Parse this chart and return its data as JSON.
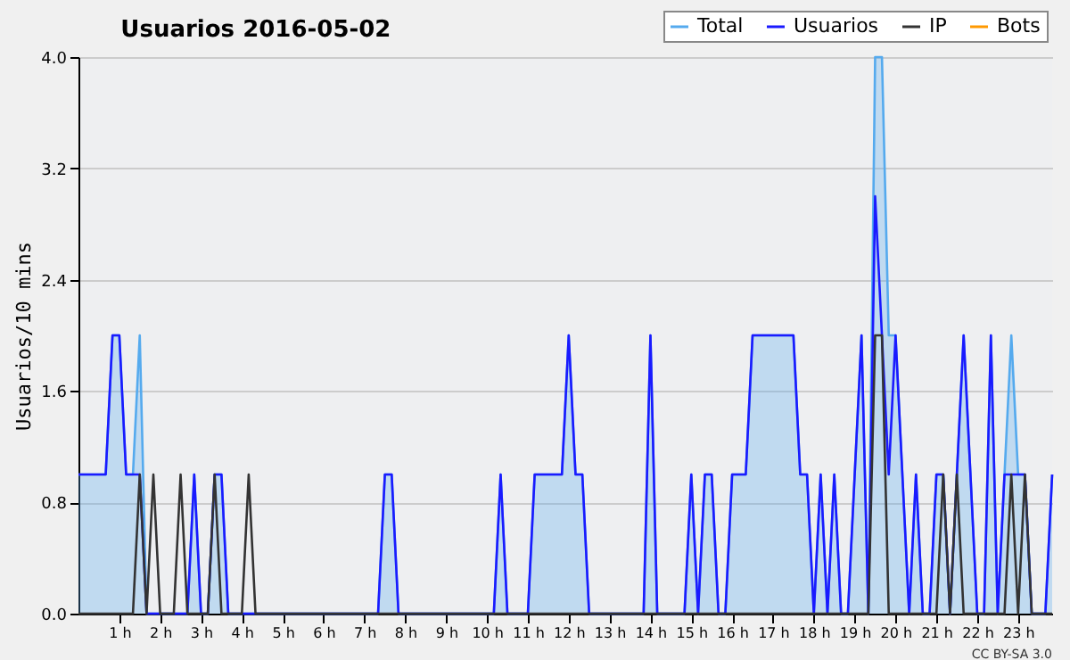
{
  "chart_data": {
    "type": "line",
    "title": "Usuarios  2016-05-02",
    "ylabel": "Usuarios/10 mins",
    "annotations": [
      "CC BY-SA 3.0"
    ],
    "x": [
      0,
      0.1667,
      0.3333,
      0.5,
      0.6667,
      0.8333,
      1,
      1.1667,
      1.3333,
      1.5,
      1.6667,
      1.8333,
      2,
      2.1667,
      2.3333,
      2.5,
      2.6667,
      2.8333,
      3,
      3.1667,
      3.3333,
      3.5,
      3.6667,
      3.8333,
      4,
      4.1667,
      4.3333,
      4.5,
      4.6667,
      4.8333,
      5,
      5.1667,
      5.3333,
      5.5,
      5.6667,
      5.8333,
      6,
      6.1667,
      6.3333,
      6.5,
      6.6667,
      6.8333,
      7,
      7.1667,
      7.3333,
      7.5,
      7.6667,
      7.8333,
      8,
      8.1667,
      8.3333,
      8.5,
      8.6667,
      8.8333,
      9,
      9.1667,
      9.3333,
      9.5,
      9.6667,
      9.8333,
      10,
      10.1667,
      10.3333,
      10.5,
      10.6667,
      10.8333,
      11,
      11.1667,
      11.3333,
      11.5,
      11.6667,
      11.8333,
      12,
      12.1667,
      12.3333,
      12.5,
      12.6667,
      12.8333,
      13,
      13.1667,
      13.3333,
      13.5,
      13.6667,
      13.8333,
      14,
      14.1667,
      14.3333,
      14.5,
      14.6667,
      14.8333,
      15,
      15.1667,
      15.3333,
      15.5,
      15.6667,
      15.8333,
      16,
      16.1667,
      16.3333,
      16.5,
      16.6667,
      16.8333,
      17,
      17.1667,
      17.3333,
      17.5,
      17.6667,
      17.8333,
      18,
      18.1667,
      18.3333,
      18.5,
      18.6667,
      18.8333,
      19,
      19.1667,
      19.3333,
      19.5,
      19.6667,
      19.8333,
      20,
      20.1667,
      20.3333,
      20.5,
      20.6667,
      20.8333,
      21,
      21.1667,
      21.3333,
      21.5,
      21.6667,
      21.8333,
      22,
      22.1667,
      22.3333,
      22.5,
      22.6667,
      22.8333,
      23,
      23.1667,
      23.3333,
      23.5,
      23.6667,
      23.8333
    ],
    "xlim": [
      0,
      23.8333
    ],
    "xticks": [
      {
        "value": 1,
        "label": "1 h"
      },
      {
        "value": 2,
        "label": "2 h"
      },
      {
        "value": 3,
        "label": "3 h"
      },
      {
        "value": 4,
        "label": "4 h"
      },
      {
        "value": 5,
        "label": "5 h"
      },
      {
        "value": 6,
        "label": "6 h"
      },
      {
        "value": 7,
        "label": "7 h"
      },
      {
        "value": 8,
        "label": "8 h"
      },
      {
        "value": 9,
        "label": "9 h"
      },
      {
        "value": 10,
        "label": "10 h"
      },
      {
        "value": 11,
        "label": "11 h"
      },
      {
        "value": 12,
        "label": "12 h"
      },
      {
        "value": 13,
        "label": "13 h"
      },
      {
        "value": 14,
        "label": "14 h"
      },
      {
        "value": 15,
        "label": "15 h"
      },
      {
        "value": 16,
        "label": "16 h"
      },
      {
        "value": 17,
        "label": "17 h"
      },
      {
        "value": 18,
        "label": "18 h"
      },
      {
        "value": 19,
        "label": "19 h"
      },
      {
        "value": 20,
        "label": "20 h"
      },
      {
        "value": 21,
        "label": "21 h"
      },
      {
        "value": 22,
        "label": "22 h"
      },
      {
        "value": 23,
        "label": "23 h"
      }
    ],
    "ylim": [
      0,
      4
    ],
    "yticks": [
      {
        "value": 0,
        "label": "0.0"
      },
      {
        "value": 0.8,
        "label": "0.8"
      },
      {
        "value": 1.6,
        "label": "1.6"
      },
      {
        "value": 2.4,
        "label": "2.4"
      },
      {
        "value": 3.2,
        "label": "3.2"
      },
      {
        "value": 4,
        "label": "4.0"
      }
    ],
    "grid": "y",
    "legend": "top right",
    "series": [
      {
        "name": "Total",
        "type": "area",
        "color": "#55aaee",
        "values": [
          1,
          1,
          1,
          1,
          1,
          2,
          2,
          1,
          1,
          2,
          0,
          0,
          0,
          0,
          0,
          0,
          0,
          1,
          0,
          0,
          1,
          1,
          0,
          0,
          0,
          0,
          0,
          0,
          0,
          0,
          0,
          0,
          0,
          0,
          0,
          0,
          0,
          0,
          0,
          0,
          0,
          0,
          0,
          0,
          0,
          1,
          1,
          0,
          0,
          0,
          0,
          0,
          0,
          0,
          0,
          0,
          0,
          0,
          0,
          0,
          0,
          0,
          1,
          0,
          0,
          0,
          0,
          1,
          1,
          1,
          1,
          1,
          2,
          1,
          1,
          0,
          0,
          0,
          0,
          0,
          0,
          0,
          0,
          0,
          2,
          0,
          0,
          0,
          0,
          0,
          1,
          0,
          1,
          1,
          0,
          0,
          1,
          1,
          1,
          2,
          2,
          2,
          2,
          2,
          2,
          2,
          1,
          1,
          0,
          1,
          0,
          1,
          0,
          0,
          1,
          2,
          0,
          4,
          4,
          2,
          2,
          1,
          0,
          1,
          0,
          0,
          1,
          1,
          0,
          1,
          2,
          1,
          0,
          0,
          2,
          0,
          1,
          2,
          1,
          1,
          0,
          0,
          0,
          1
        ]
      },
      {
        "name": "Usuarios",
        "color": "#1a1aff",
        "values": [
          1,
          1,
          1,
          1,
          1,
          2,
          2,
          1,
          1,
          1,
          0,
          0,
          0,
          0,
          0,
          0,
          0,
          1,
          0,
          0,
          1,
          1,
          0,
          0,
          0,
          0,
          0,
          0,
          0,
          0,
          0,
          0,
          0,
          0,
          0,
          0,
          0,
          0,
          0,
          0,
          0,
          0,
          0,
          0,
          0,
          1,
          1,
          0,
          0,
          0,
          0,
          0,
          0,
          0,
          0,
          0,
          0,
          0,
          0,
          0,
          0,
          0,
          1,
          0,
          0,
          0,
          0,
          1,
          1,
          1,
          1,
          1,
          2,
          1,
          1,
          0,
          0,
          0,
          0,
          0,
          0,
          0,
          0,
          0,
          2,
          0,
          0,
          0,
          0,
          0,
          1,
          0,
          1,
          1,
          0,
          0,
          1,
          1,
          1,
          2,
          2,
          2,
          2,
          2,
          2,
          2,
          1,
          1,
          0,
          1,
          0,
          1,
          0,
          0,
          1,
          2,
          0,
          3,
          2,
          1,
          2,
          1,
          0,
          1,
          0,
          0,
          1,
          1,
          0,
          1,
          2,
          1,
          0,
          0,
          2,
          0,
          1,
          1,
          1,
          1,
          0,
          0,
          0,
          1
        ]
      },
      {
        "name": "IP",
        "color": "#333333",
        "values": [
          0,
          0,
          0,
          0,
          0,
          0,
          0,
          0,
          0,
          1,
          0,
          1,
          0,
          0,
          0,
          1,
          0,
          0,
          0,
          0,
          1,
          0,
          0,
          0,
          0,
          1,
          0,
          0,
          0,
          0,
          0,
          0,
          0,
          0,
          0,
          0,
          0,
          0,
          0,
          0,
          0,
          0,
          0,
          0,
          0,
          0,
          0,
          0,
          0,
          0,
          0,
          0,
          0,
          0,
          0,
          0,
          0,
          0,
          0,
          0,
          0,
          0,
          0,
          0,
          0,
          0,
          0,
          0,
          0,
          0,
          0,
          0,
          0,
          0,
          0,
          0,
          0,
          0,
          0,
          0,
          0,
          0,
          0,
          0,
          0,
          0,
          0,
          0,
          0,
          0,
          0,
          0,
          0,
          0,
          0,
          0,
          0,
          0,
          0,
          0,
          0,
          0,
          0,
          0,
          0,
          0,
          0,
          0,
          0,
          0,
          0,
          0,
          0,
          0,
          0,
          0,
          0,
          2,
          2,
          0,
          0,
          0,
          0,
          0,
          0,
          0,
          0,
          1,
          0,
          1,
          0,
          0,
          0,
          0,
          0,
          0,
          0,
          1,
          0,
          1,
          0,
          0,
          0,
          0
        ]
      },
      {
        "name": "Bots",
        "color": "#ff9900",
        "values": [
          null,
          null,
          null,
          null,
          null,
          null,
          null,
          null,
          null,
          null,
          null,
          null,
          null,
          null,
          null,
          null,
          null,
          null,
          null,
          null,
          null,
          null,
          null,
          null,
          null,
          null,
          null,
          null,
          null,
          null,
          null,
          null,
          null,
          null,
          null,
          null,
          null,
          null,
          null,
          null,
          null,
          null,
          null,
          null,
          null,
          null,
          null,
          null,
          null,
          null,
          null,
          null,
          null,
          null,
          null,
          null,
          null,
          null,
          null,
          null,
          null,
          null,
          null,
          null,
          null,
          null,
          null,
          null,
          null,
          null,
          null,
          null,
          null,
          null,
          null,
          null,
          null,
          null,
          null,
          null,
          null,
          null,
          null,
          null,
          null,
          null,
          null,
          null,
          null,
          null,
          null,
          null,
          null,
          null,
          null,
          null,
          null,
          null,
          null,
          null,
          null,
          null,
          null,
          null,
          null,
          null,
          null,
          null,
          null,
          null,
          null,
          null,
          null,
          null,
          null,
          null,
          null,
          null,
          null,
          null,
          null,
          null,
          null,
          null,
          null,
          null,
          null,
          null,
          null,
          null,
          null,
          null,
          null,
          null,
          null,
          null,
          null,
          null,
          null,
          null,
          null,
          null,
          null,
          null
        ]
      }
    ]
  }
}
